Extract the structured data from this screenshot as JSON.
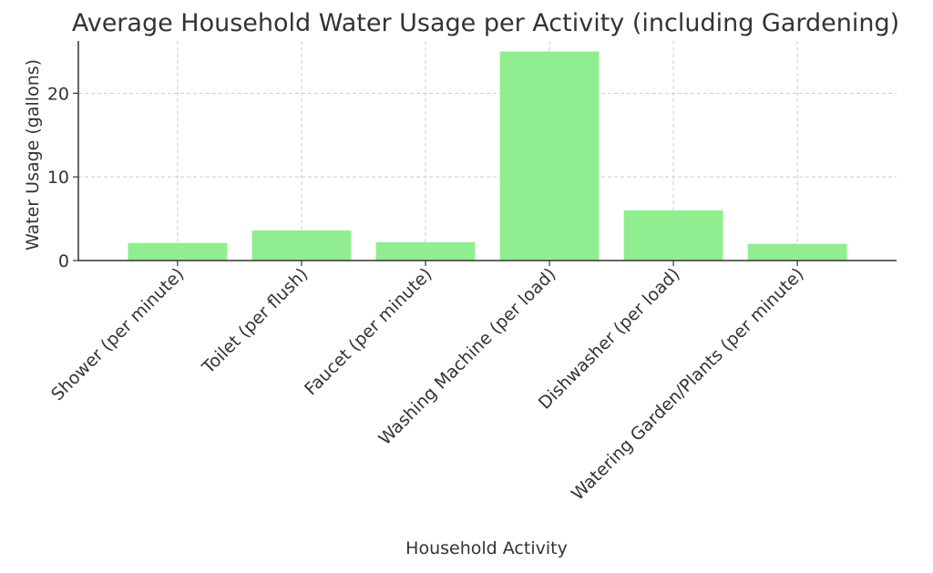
{
  "chart_data": {
    "type": "bar",
    "title": "Average Household Water Usage per Activity (including Gardening)",
    "xlabel": "Household Activity",
    "ylabel": "Water Usage (gallons)",
    "categories": [
      "Shower (per minute)",
      "Toilet (per flush)",
      "Faucet (per minute)",
      "Washing Machine (per load)",
      "Dishwasher (per load)",
      "Watering Garden/Plants (per minute)"
    ],
    "values": [
      2.1,
      3.6,
      2.2,
      25,
      6,
      2
    ],
    "ylim": [
      0,
      26.25
    ],
    "yticks": [
      0,
      10,
      20
    ],
    "grid": true,
    "bar_color": "#90ee90",
    "axis_color": "#333333",
    "grid_color": "#cccccc"
  }
}
